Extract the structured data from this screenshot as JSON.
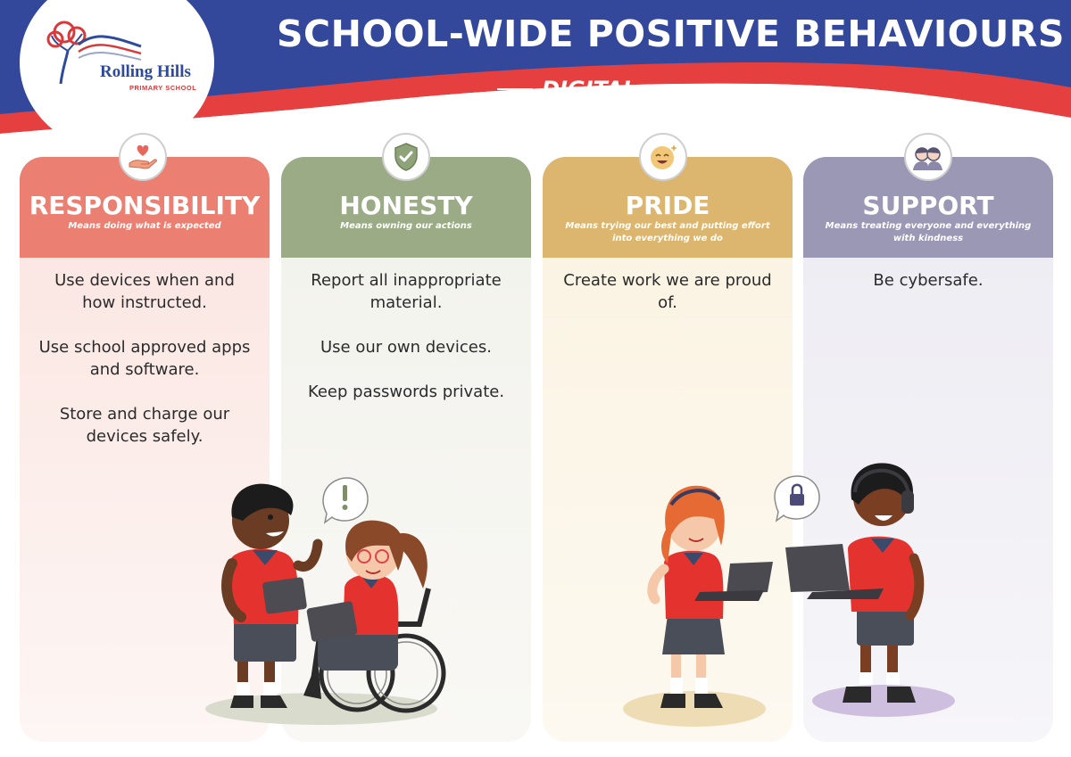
{
  "header": {
    "title": "SCHOOL-WIDE POSITIVE BEHAVIOURS",
    "subtitle": "DIGITAL",
    "logo_name": "Rolling Hills",
    "logo_sub": "PRIMARY SCHOOL"
  },
  "colors": {
    "banner_blue": "#33489b",
    "banner_red": "#e53f3f",
    "responsibility": "#ea7f72",
    "honesty": "#9aab86",
    "pride": "#dcb56e",
    "support": "#9b98b5"
  },
  "columns": [
    {
      "key": "responsibility",
      "icon": "hand-heart-icon",
      "title": "RESPONSIBILITY",
      "desc": "Means doing what is expected",
      "items": [
        "Use devices when and how instructed.",
        "Use school approved apps and software.",
        "Store and charge our devices safely."
      ]
    },
    {
      "key": "honesty",
      "icon": "shield-check-icon",
      "title": "HONESTY",
      "desc": "Means owning our actions",
      "items": [
        "Report all inappropriate material.",
        "Use our own devices.",
        "Keep passwords private."
      ]
    },
    {
      "key": "pride",
      "icon": "smiling-face-icon",
      "title": "PRIDE",
      "desc": "Means trying our best and putting effort into everything we do",
      "items": [
        "Create work we are proud of."
      ]
    },
    {
      "key": "support",
      "icon": "two-friends-icon",
      "title": "SUPPORT",
      "desc": "Means treating everyone and everything with kindness",
      "items": [
        "Be cybersafe."
      ]
    }
  ]
}
